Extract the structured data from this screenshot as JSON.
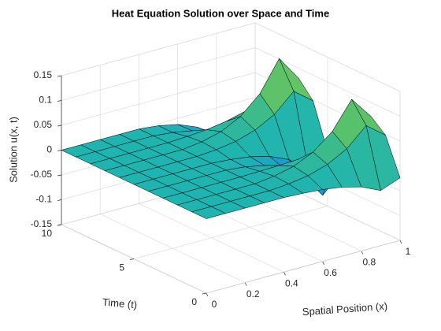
{
  "chart_data": {
    "type": "surface",
    "title": "Heat Equation Solution over Space and Time",
    "xlabel": "Spatial Position (x)",
    "ylabel": "Time (t)",
    "zlabel": "Solution u(x, t)",
    "x": [
      0,
      0.1,
      0.2,
      0.3,
      0.4,
      0.5,
      0.6,
      0.7,
      0.8,
      0.9,
      1
    ],
    "y": [
      0,
      1,
      2,
      3,
      4,
      5,
      6,
      7,
      8,
      9,
      10
    ],
    "z": [
      [
        0,
        0,
        0,
        0,
        0,
        -0.002,
        -0.005,
        -0.011,
        -0.021,
        -0.039,
        -0.024
      ],
      [
        0,
        0,
        0,
        0,
        0,
        0.003,
        0.009,
        0.021,
        0.042,
        0.078,
        0.048
      ],
      [
        0,
        0,
        0,
        0,
        0,
        0.005,
        0.014,
        0.032,
        0.063,
        0.117,
        0.072
      ],
      [
        0,
        0,
        0,
        0,
        0,
        0.001,
        0.002,
        0.004,
        0.007,
        0.013,
        0.008
      ],
      [
        0,
        0,
        0,
        0,
        0,
        -0.004,
        -0.012,
        -0.028,
        -0.056,
        -0.104,
        -0.064
      ],
      [
        0,
        0,
        0,
        0,
        0,
        -0.003,
        -0.008,
        -0.018,
        -0.035,
        -0.065,
        -0.04
      ],
      [
        0,
        0,
        0,
        0,
        0,
        0.003,
        0.009,
        0.021,
        0.042,
        0.078,
        0.048
      ],
      [
        0,
        0,
        0,
        0,
        0,
        0.005,
        0.015,
        0.035,
        0.07,
        0.13,
        0.08
      ],
      [
        0,
        0,
        0,
        0,
        0,
        0.002,
        0.005,
        0.011,
        0.021,
        0.039,
        0.024
      ],
      [
        0,
        0,
        0,
        0,
        0,
        -0.004,
        -0.011,
        -0.025,
        -0.049,
        -0.091,
        -0.056
      ],
      [
        0,
        0,
        0,
        0,
        0,
        -0.004,
        -0.012,
        -0.028,
        -0.056,
        -0.104,
        -0.064
      ]
    ],
    "xlim": [
      0,
      1
    ],
    "ylim": [
      0,
      10
    ],
    "zlim": [
      -0.15,
      0.15
    ],
    "xticks": [
      0,
      0.2,
      0.4,
      0.6,
      0.8,
      1
    ],
    "yticks": [
      0,
      5,
      10
    ],
    "zticks": [
      -0.15,
      -0.1,
      -0.05,
      0,
      0.05,
      0.1,
      0.15
    ],
    "grid": true
  }
}
